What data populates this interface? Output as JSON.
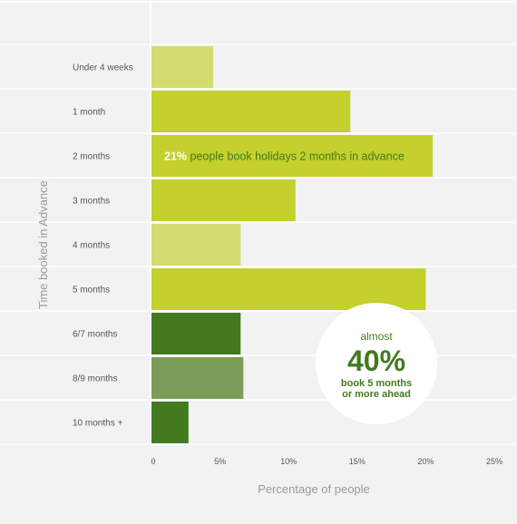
{
  "chart_data": {
    "type": "bar",
    "orientation": "horizontal",
    "title": "",
    "xlabel": "Percentage of people",
    "ylabel": "Time booked in Advance",
    "categories": [
      "Under 4 weeks",
      "1 month",
      "2 months",
      "3 months",
      "4 months",
      "5 months",
      "6/7 months",
      "8/9 months",
      "10 months +"
    ],
    "values": [
      4.5,
      14.5,
      20.5,
      10.5,
      6.5,
      20,
      6.5,
      6.7,
      2.7
    ],
    "bar_colors": [
      "#d3dd6f",
      "#c3d02e",
      "#c3d02e",
      "#c3d02e",
      "#d3dd6f",
      "#c3d02e",
      "#447a1e",
      "#7a9e57",
      "#447a1e"
    ],
    "xlim": [
      0,
      25
    ],
    "xticks": [
      "0",
      "5%",
      "10%",
      "15%",
      "20%",
      "25%"
    ],
    "grid": "horizontal",
    "annotations": [
      {
        "highlight": "21%",
        "text": " people book holidays 2 months in advance",
        "category": "2 months"
      },
      {
        "lines": [
          "almost",
          "40%",
          "book 5 months",
          "or more ahead"
        ],
        "shape": "circle"
      }
    ]
  },
  "colors": {
    "background": "#f2f2f2",
    "grid": "#ffffff",
    "axis_text": "#555555",
    "axis_title": "#9a9a9a",
    "annotation_dark": "#447a1e",
    "annotation_highlight": "#ffffff"
  }
}
